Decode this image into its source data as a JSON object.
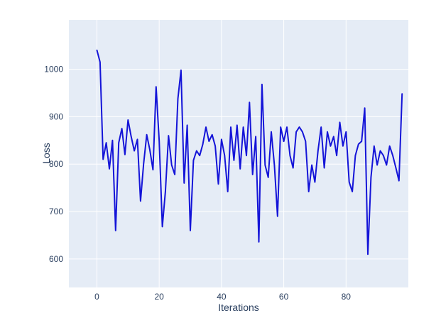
{
  "chart_data": {
    "type": "line",
    "title": "",
    "xlabel": "Iterations",
    "ylabel": "Loss",
    "series": [
      {
        "name": "loss",
        "x0": 0,
        "dx": 1,
        "values": [
          1040,
          1015,
          810,
          845,
          790,
          850,
          660,
          845,
          875,
          820,
          893,
          858,
          828,
          852,
          722,
          800,
          862,
          830,
          788,
          963,
          848,
          668,
          742,
          860,
          798,
          778,
          938,
          998,
          760,
          882,
          660,
          808,
          828,
          818,
          842,
          878,
          848,
          862,
          838,
          758,
          852,
          818,
          742,
          878,
          808,
          882,
          790,
          878,
          818,
          930,
          778,
          858,
          636,
          968,
          798,
          772,
          868,
          798,
          690,
          878,
          848,
          878,
          818,
          792,
          868,
          878,
          868,
          848,
          742,
          798,
          762,
          828,
          878,
          792,
          868,
          838,
          858,
          818,
          888,
          838,
          868,
          762,
          742,
          818,
          842,
          848,
          918,
          610,
          772,
          838,
          798,
          828,
          818,
          798,
          838,
          818,
          792,
          765,
          948
        ]
      }
    ],
    "xticks": [
      0,
      20,
      40,
      60,
      80
    ],
    "yticks": [
      600,
      700,
      800,
      900,
      1000
    ],
    "xlim": [
      -9,
      100
    ],
    "ylim": [
      540,
      1104
    ],
    "grid": true,
    "legend": false,
    "line_color": "#1414d8",
    "plot_bg": "#e5ecf6",
    "paper_bg": "#ffffff",
    "grid_color": "#ffffff",
    "tick_color": "#2a3f5f",
    "tick_font_size": 12
  }
}
